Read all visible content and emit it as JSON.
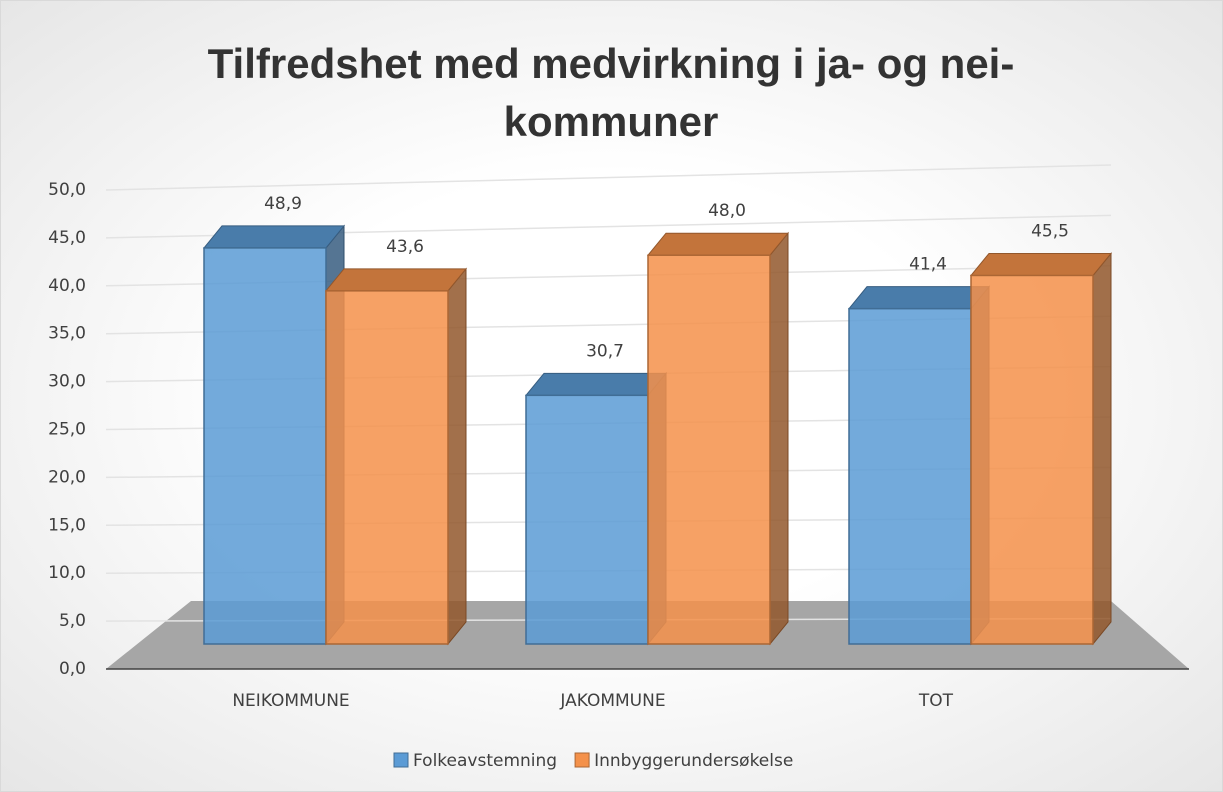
{
  "chart_data": {
    "type": "bar3d",
    "title": "Tilfredshet med medvirkning i ja- og nei-kommuner",
    "categories": [
      "NEIKOMMUNE",
      "JAKOMMUNE",
      "TOT"
    ],
    "series": [
      {
        "name": "Folkeavstemning",
        "color": "#5b9bd5",
        "values": [
          48.9,
          30.7,
          41.4
        ],
        "value_labels": [
          "48,9",
          "30,7",
          "41,4"
        ]
      },
      {
        "name": "Innbyggerundersøkelse",
        "color": "#f4914a",
        "values": [
          43.6,
          48.0,
          45.5
        ],
        "value_labels": [
          "43,6",
          "48,0",
          "45,5"
        ]
      }
    ],
    "ylim": [
      0,
      50
    ],
    "yticks": [
      {
        "value": 0,
        "label": "0,0"
      },
      {
        "value": 5,
        "label": "5,0"
      },
      {
        "value": 10,
        "label": "10,0"
      },
      {
        "value": 15,
        "label": "15,0"
      },
      {
        "value": 20,
        "label": "20,0"
      },
      {
        "value": 25,
        "label": "25,0"
      },
      {
        "value": 30,
        "label": "30,0"
      },
      {
        "value": 35,
        "label": "35,0"
      },
      {
        "value": 40,
        "label": "40,0"
      },
      {
        "value": 45,
        "label": "45,0"
      },
      {
        "value": 50,
        "label": "50,0"
      }
    ],
    "grid": true,
    "legend": "bottom"
  }
}
